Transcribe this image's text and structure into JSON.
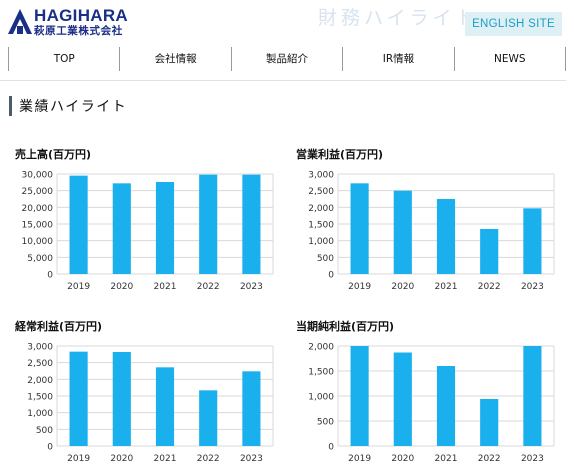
{
  "header": {
    "logo_name": "HAGIHARA",
    "logo_subtitle": "萩原工業株式会社",
    "page_heading": "財務ハイライト",
    "english_site": "ENGLISH SITE"
  },
  "nav": {
    "items": [
      "TOP",
      "会社情報",
      "製品紹介",
      "IR情報",
      "NEWS"
    ]
  },
  "section": {
    "title": "業績ハイライト"
  },
  "colors": {
    "bar": "#1ab0ee",
    "grid": "#d9d9d9",
    "brand": "#1a2f86"
  },
  "chart_data": [
    {
      "type": "bar",
      "title": "売上高(百万円)",
      "categories": [
        "2019",
        "2020",
        "2021",
        "2022",
        "2023"
      ],
      "values": [
        29500,
        27200,
        27600,
        29800,
        29800
      ],
      "yticks": [
        "0",
        "5,000",
        "10,000",
        "15,000",
        "20,000",
        "25,000",
        "30,000"
      ],
      "ylim": [
        0,
        30000
      ],
      "grid": true
    },
    {
      "type": "bar",
      "title": "営業利益(百万円)",
      "categories": [
        "2019",
        "2020",
        "2021",
        "2022",
        "2023"
      ],
      "values": [
        2720,
        2500,
        2250,
        1350,
        1970
      ],
      "yticks": [
        "0",
        "500",
        "1,000",
        "1,500",
        "2,000",
        "2,500",
        "3,000"
      ],
      "ylim": [
        0,
        3000
      ],
      "grid": true
    },
    {
      "type": "bar",
      "title": "経常利益(百万円)",
      "categories": [
        "2019",
        "2020",
        "2021",
        "2022",
        "2023"
      ],
      "values": [
        2830,
        2820,
        2360,
        1670,
        2240
      ],
      "yticks": [
        "0",
        "500",
        "1,000",
        "1,500",
        "2,000",
        "2,500",
        "3,000"
      ],
      "ylim": [
        0,
        3000
      ],
      "grid": true
    },
    {
      "type": "bar",
      "title": "当期純利益(百万円)",
      "categories": [
        "2019",
        "2020",
        "2021",
        "2022",
        "2023"
      ],
      "values": [
        2000,
        1870,
        1600,
        940,
        2000
      ],
      "yticks": [
        "0",
        "500",
        "1,000",
        "1,500",
        "2,000"
      ],
      "ylim": [
        0,
        2000
      ],
      "grid": true
    }
  ]
}
